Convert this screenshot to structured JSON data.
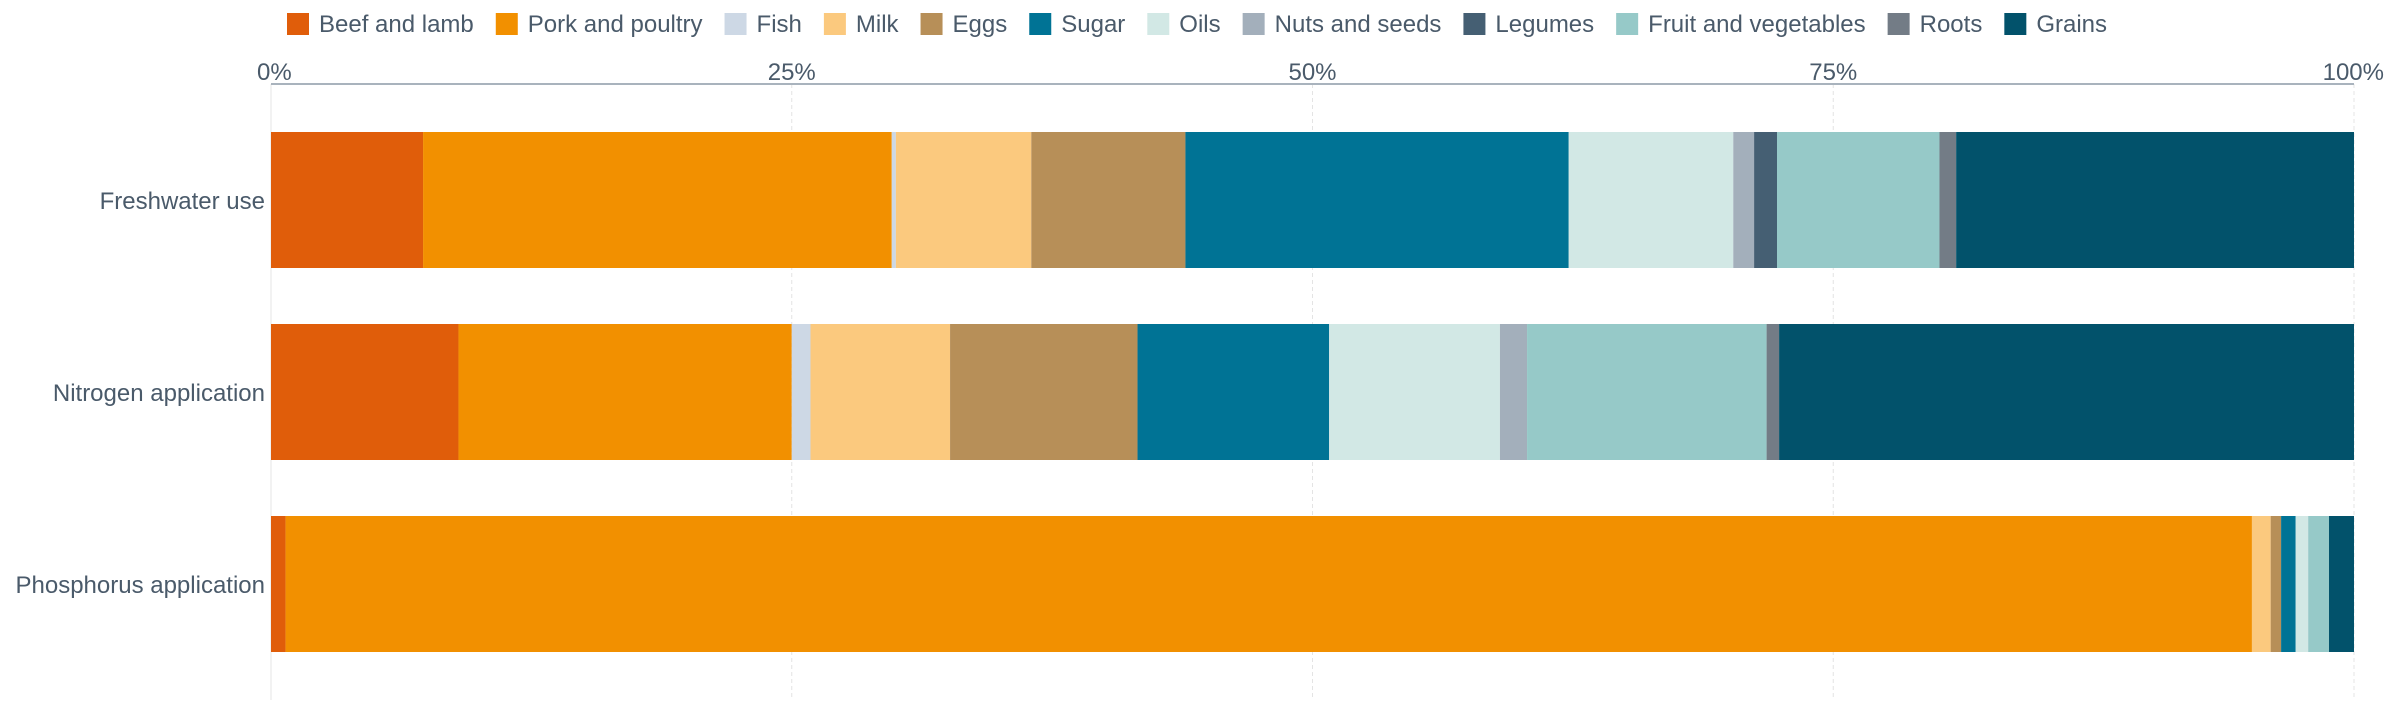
{
  "chart_data": {
    "type": "bar",
    "orientation": "horizontal",
    "stacked": true,
    "normalized": true,
    "xlim": [
      0,
      100
    ],
    "x_ticks": [
      {
        "value": 0,
        "label": "0%"
      },
      {
        "value": 25,
        "label": "25%"
      },
      {
        "value": 50,
        "label": "50%"
      },
      {
        "value": 75,
        "label": "75%"
      },
      {
        "value": 100,
        "label": "100%"
      }
    ],
    "x_axis_position": "top",
    "grid": true,
    "legend_placement": "top-left",
    "categories": [
      "Freshwater use",
      "Nitrogen application",
      "Phosphorus application"
    ],
    "series": [
      {
        "name": "Beef and lamb",
        "color": "#e05d0a",
        "values": [
          7.3,
          9.0,
          0.7
        ]
      },
      {
        "name": "Pork and poultry",
        "color": "#f29000",
        "values": [
          22.5,
          16.0,
          94.4
        ]
      },
      {
        "name": "Fish",
        "color": "#cdd8e5",
        "values": [
          0.2,
          0.9,
          0.0
        ]
      },
      {
        "name": "Milk",
        "color": "#fbc97e",
        "values": [
          6.5,
          6.7,
          0.9
        ]
      },
      {
        "name": "Eggs",
        "color": "#b78f58",
        "values": [
          7.4,
          9.0,
          0.5
        ]
      },
      {
        "name": "Sugar",
        "color": "#007395",
        "values": [
          18.4,
          9.2,
          0.7
        ]
      },
      {
        "name": "Oils",
        "color": "#d2e8e5",
        "values": [
          7.9,
          8.2,
          0.6
        ]
      },
      {
        "name": "Nuts and seeds",
        "color": "#a3afbb",
        "values": [
          1.0,
          1.3,
          0.0
        ]
      },
      {
        "name": "Legumes",
        "color": "#455f73",
        "values": [
          1.1,
          0.0,
          0.0
        ]
      },
      {
        "name": "Fruit and vegetables",
        "color": "#96c9c8",
        "values": [
          7.8,
          11.5,
          1.0
        ]
      },
      {
        "name": "Roots",
        "color": "#737c86",
        "values": [
          0.8,
          0.6,
          0.0
        ]
      },
      {
        "name": "Grains",
        "color": "#02526b",
        "values": [
          19.1,
          27.6,
          1.2
        ]
      }
    ]
  }
}
